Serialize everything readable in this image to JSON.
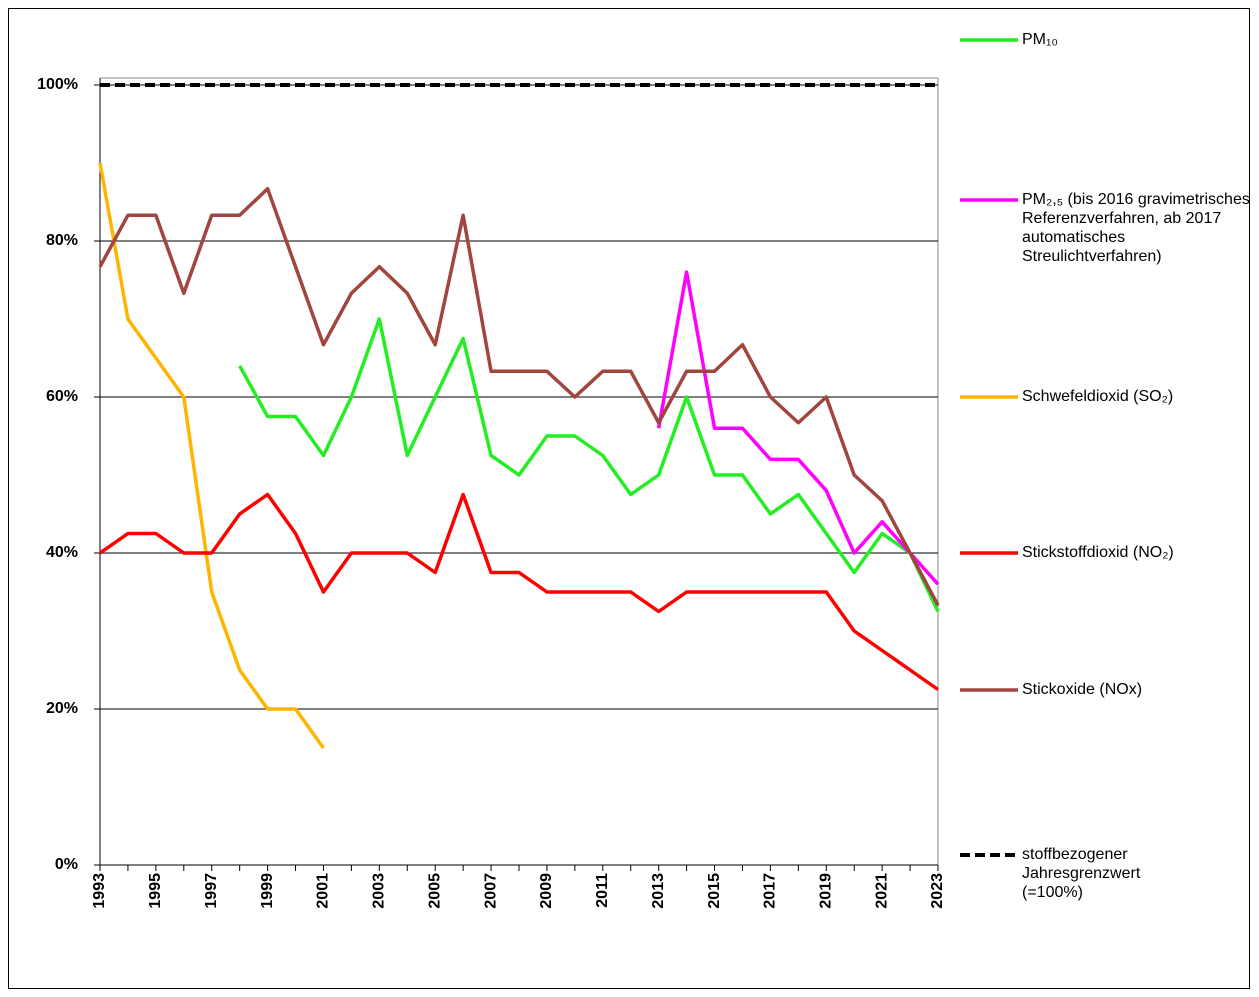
{
  "chart_data": {
    "type": "line",
    "x": [
      1993,
      1994,
      1995,
      1996,
      1997,
      1998,
      1999,
      2000,
      2001,
      2002,
      2003,
      2004,
      2005,
      2006,
      2007,
      2008,
      2009,
      2010,
      2011,
      2012,
      2013,
      2014,
      2015,
      2016,
      2017,
      2018,
      2019,
      2020,
      2021,
      2022,
      2023
    ],
    "xlim": [
      1993,
      2023
    ],
    "xticks": [
      1993,
      1995,
      1997,
      1999,
      2001,
      2003,
      2005,
      2007,
      2009,
      2011,
      2013,
      2015,
      2017,
      2019,
      2021,
      2023
    ],
    "ylim": [
      0,
      100
    ],
    "yticks": [
      {
        "value": 0,
        "label": "0%"
      },
      {
        "value": 20,
        "label": "20%"
      },
      {
        "value": 40,
        "label": "40%"
      },
      {
        "value": 60,
        "label": "60%"
      },
      {
        "value": 80,
        "label": "80%"
      },
      {
        "value": 100,
        "label": "100%"
      }
    ],
    "grid": true,
    "series": [
      {
        "name": "PM₁₀",
        "color": "#22ee22",
        "values": [
          null,
          null,
          null,
          null,
          null,
          64,
          57.5,
          57.5,
          52.5,
          60,
          70,
          52.5,
          60,
          67.5,
          52.5,
          50,
          55,
          55,
          52.5,
          47.5,
          50,
          60,
          50,
          50,
          45,
          47.5,
          42.5,
          37.5,
          42.5,
          40,
          32.5
        ]
      },
      {
        "name": "PM₂,₅ (bis 2016 gravimetrisches Referenzverfahren, ab 2017 automatisches Streulichtverfahren)",
        "color": "#ff00ff",
        "values": [
          null,
          null,
          null,
          null,
          null,
          null,
          null,
          null,
          null,
          null,
          null,
          null,
          null,
          null,
          null,
          null,
          null,
          null,
          null,
          null,
          56,
          76,
          56,
          56,
          52,
          52,
          48,
          40,
          44,
          40,
          36
        ]
      },
      {
        "name": "Schwefeldioxid (SO₂)",
        "color": "#ffb400",
        "values": [
          90,
          70,
          65,
          60,
          35,
          25,
          20,
          20,
          15,
          null,
          null,
          null,
          null,
          null,
          null,
          null,
          null,
          null,
          null,
          null,
          null,
          null,
          null,
          null,
          null,
          null,
          null,
          null,
          null,
          null,
          null
        ]
      },
      {
        "name": "Stickstoffdioxid (NO₂)",
        "color": "#ff0000",
        "values": [
          40,
          42.5,
          42.5,
          40,
          40,
          45,
          47.5,
          42.5,
          35,
          40,
          40,
          40,
          37.5,
          47.5,
          37.5,
          37.5,
          35,
          35,
          35,
          35,
          32.5,
          35,
          35,
          35,
          35,
          35,
          35,
          30,
          27.5,
          25,
          22.5
        ]
      },
      {
        "name": "Stickoxide (NOx)",
        "color": "#a0453f",
        "values": [
          76.7,
          83.3,
          83.3,
          73.3,
          83.3,
          83.3,
          86.7,
          76.7,
          66.7,
          73.3,
          76.7,
          73.3,
          66.7,
          83.3,
          63.3,
          63.3,
          63.3,
          60,
          63.3,
          63.3,
          56.7,
          63.3,
          63.3,
          66.7,
          60,
          56.7,
          60,
          50,
          46.7,
          40,
          33.3
        ]
      }
    ],
    "threshold": {
      "value": 100,
      "label": "stoffbezogener Jahresgrenzwert (=100%)",
      "color": "#000000"
    }
  }
}
